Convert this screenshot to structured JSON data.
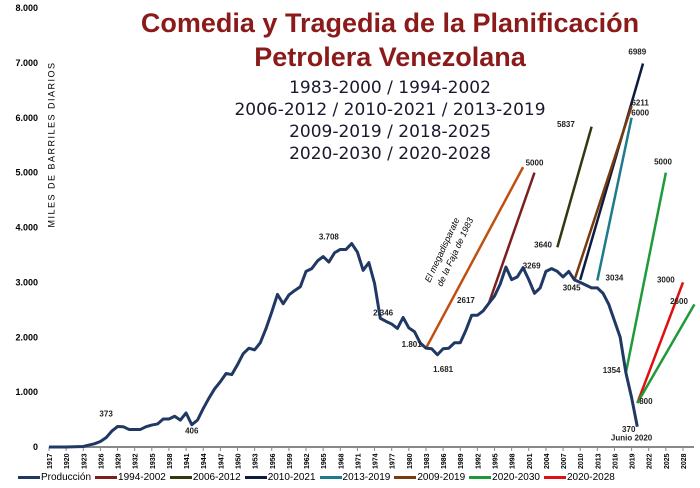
{
  "chart_data": {
    "type": "line",
    "title": "Comedia y Tragedia de la Planificación",
    "title_line2": "Petrolera Venezolana",
    "subtitle_lines": [
      "1983-2000 / 1994-2002",
      "2006-2012 / 2010-2021 / 2013-2019",
      "2009-2019 / 2018-2025",
      "2020-2030 / 2020-2028"
    ],
    "ylabel": "MILES DE BARRILES DIARIOS",
    "ylim": [
      0,
      8000
    ],
    "xlim": [
      1917,
      2030
    ],
    "y_ticks": [
      "0",
      "1.000",
      "2.000",
      "3.000",
      "4.000",
      "5.000",
      "6.000",
      "7.000",
      "8.000"
    ],
    "x_ticks": [
      1917,
      1920,
      1923,
      1926,
      1929,
      1932,
      1935,
      1938,
      1941,
      1944,
      1947,
      1950,
      1953,
      1956,
      1959,
      1962,
      1965,
      1968,
      1971,
      1974,
      1977,
      1980,
      1983,
      1986,
      1989,
      1992,
      1995,
      1998,
      2001,
      2004,
      2007,
      2010,
      2013,
      2016,
      2019,
      2022,
      2025,
      2028
    ],
    "production": {
      "name": "Producción",
      "color": "#1F3864",
      "x": [
        1917,
        1920,
        1923,
        1925,
        1926,
        1927,
        1928,
        1929,
        1930,
        1931,
        1932,
        1933,
        1934,
        1935,
        1936,
        1937,
        1938,
        1939,
        1940,
        1941,
        1942,
        1943,
        1944,
        1945,
        1946,
        1947,
        1948,
        1949,
        1950,
        1951,
        1952,
        1953,
        1954,
        1955,
        1956,
        1957,
        1958,
        1959,
        1960,
        1961,
        1962,
        1963,
        1964,
        1965,
        1966,
        1967,
        1968,
        1969,
        1970,
        1971,
        1972,
        1973,
        1974,
        1975,
        1976,
        1977,
        1978,
        1979,
        1980,
        1981,
        1982,
        1983,
        1984,
        1985,
        1986,
        1987,
        1988,
        1989,
        1990,
        1991,
        1992,
        1993,
        1994,
        1995,
        1996,
        1997,
        1998,
        1999,
        2000,
        2001,
        2002,
        2003,
        2004,
        2005,
        2006,
        2007,
        2008,
        2009,
        2010,
        2011,
        2012,
        2013,
        2014,
        2015,
        2016,
        2017,
        2018,
        2019,
        2020
      ],
      "y": [
        0,
        0,
        10,
        60,
        100,
        170,
        290,
        373,
        370,
        320,
        320,
        320,
        370,
        400,
        420,
        510,
        510,
        560,
        490,
        620,
        406,
        490,
        700,
        890,
        1060,
        1190,
        1340,
        1320,
        1500,
        1700,
        1800,
        1770,
        1900,
        2160,
        2460,
        2780,
        2610,
        2770,
        2850,
        2920,
        3200,
        3250,
        3390,
        3470,
        3370,
        3540,
        3600,
        3600,
        3708,
        3550,
        3220,
        3360,
        2980,
        2346,
        2290,
        2240,
        2160,
        2360,
        2170,
        2100,
        1895,
        1801,
        1790,
        1681,
        1790,
        1800,
        1900,
        1900,
        2130,
        2400,
        2400,
        2480,
        2617,
        2750,
        2970,
        3280,
        3050,
        3100,
        3269,
        3050,
        2800,
        2900,
        3200,
        3250,
        3200,
        3100,
        3200,
        3045,
        3000,
        2950,
        2900,
        2900,
        2800,
        2600,
        2300,
        2000,
        1354,
        900,
        370
      ]
    },
    "plans": [
      {
        "name": "1983-2000",
        "color": "#C0500F",
        "x": [
          1983,
          2000
        ],
        "y": [
          1801,
          5100
        ],
        "in_legend": false
      },
      {
        "name": "1994-2002",
        "color": "#7B1F1F",
        "x": [
          1994,
          2002
        ],
        "y": [
          2617,
          5000
        ]
      },
      {
        "name": "2006-2012",
        "color": "#2F3A0F",
        "x": [
          2006,
          2012
        ],
        "y": [
          3640,
          5837
        ]
      },
      {
        "name": "2010-2021",
        "color": "#0D1B3E",
        "x": [
          2010,
          2021
        ],
        "y": [
          3045,
          6989
        ]
      },
      {
        "name": "2013-2019",
        "color": "#1F7A8C",
        "x": [
          2013,
          2019
        ],
        "y": [
          3034,
          6000
        ]
      },
      {
        "name": "2009-2019",
        "color": "#7A3A10",
        "x": [
          2009,
          2019
        ],
        "y": [
          3045,
          6211
        ]
      },
      {
        "name": "2018-2025",
        "color": "#1E9A3A",
        "x": [
          2018,
          2025
        ],
        "y": [
          1354,
          5000
        ],
        "in_legend": false
      },
      {
        "name": "2020-2028",
        "color": "#E01010",
        "x": [
          2020,
          2028
        ],
        "y": [
          800,
          3000
        ]
      },
      {
        "name": "2020-2030",
        "color": "#1E9A3A",
        "x": [
          2020,
          2030
        ],
        "y": [
          800,
          2600
        ]
      }
    ],
    "legend": [
      "Producción",
      "1994-2002",
      "2006-2012",
      "2010-2021",
      "2013-2019",
      "2009-2019",
      "2020-2030",
      "2020-2028"
    ],
    "legend_colors": [
      "#1F3864",
      "#7B1F1F",
      "#2F3A0F",
      "#0D1B3E",
      "#1F7A8C",
      "#7A3A10",
      "#1E9A3A",
      "#E01010"
    ],
    "legend_position": "bottom",
    "annotations": [
      {
        "text": "373",
        "x": 1927,
        "y": 560
      },
      {
        "text": "406",
        "x": 1942,
        "y": 250
      },
      {
        "text": "3.708",
        "x": 1966,
        "y": 3780
      },
      {
        "text": "2.346",
        "x": 1975.5,
        "y": 2400
      },
      {
        "text": "1.801",
        "x": 1980.5,
        "y": 1820
      },
      {
        "text": "1.681",
        "x": 1986,
        "y": 1370
      },
      {
        "text": "2617",
        "x": 1990,
        "y": 2620
      },
      {
        "text": "5000",
        "x": 2002,
        "y": 5130
      },
      {
        "text": "3640",
        "x": 2003.5,
        "y": 3640
      },
      {
        "text": "3269",
        "x": 2001.5,
        "y": 3250
      },
      {
        "text": "5837",
        "x": 2007.5,
        "y": 5830
      },
      {
        "text": "3045",
        "x": 2008.5,
        "y": 2850
      },
      {
        "text": "3034",
        "x": 2016,
        "y": 3030
      },
      {
        "text": "6989",
        "x": 2020,
        "y": 7150
      },
      {
        "text": "6211",
        "x": 2020.5,
        "y": 6220
      },
      {
        "text": "6000",
        "x": 2020.5,
        "y": 6040
      },
      {
        "text": "5000",
        "x": 2024.5,
        "y": 5150
      },
      {
        "text": "1354",
        "x": 2015.5,
        "y": 1350
      },
      {
        "text": "3000",
        "x": 2025,
        "y": 3000
      },
      {
        "text": "2600",
        "x": 2027.3,
        "y": 2610
      },
      {
        "text": "800",
        "x": 2021.5,
        "y": 780
      },
      {
        "text": "370",
        "x": 2018.5,
        "y": 250
      },
      {
        "text": "Junio 2020",
        "x": 2019,
        "y": 120
      }
    ],
    "rotated_annotation": {
      "line1": "El megadisparate",
      "line2": "de la Faja de 1983"
    }
  }
}
